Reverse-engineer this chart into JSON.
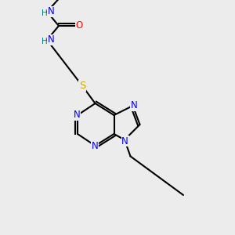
{
  "bg_color": "#ececec",
  "atom_colors": {
    "N": "#0000ff",
    "O": "#ff0000",
    "S": "#ccaa00",
    "H": "#008080"
  },
  "bond_color": "#000000",
  "figsize": [
    3.0,
    3.0
  ],
  "dpi": 100,
  "lw": 1.5,
  "fs": 8.5
}
